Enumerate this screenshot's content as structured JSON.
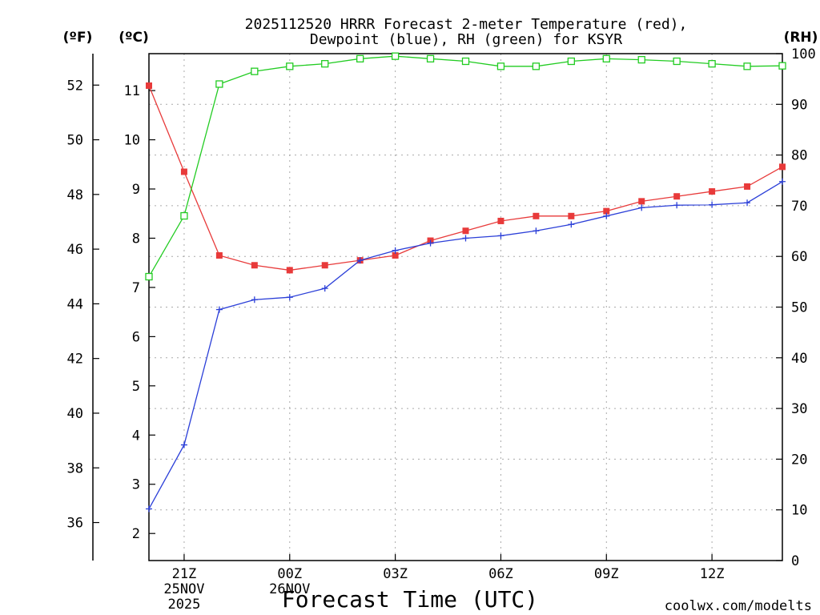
{
  "title_line1": "2025112520 HRRR Forecast 2-meter Temperature (red),",
  "title_line2": "Dewpoint (blue), RH (green) for KSYR",
  "units": {
    "fahrenheit": "(ºF)",
    "celsius": "(ºC)",
    "rh": "(RH)"
  },
  "xlabel": "Forecast Time (UTC)",
  "watermark": "coolwx.com/modelts",
  "colors": {
    "temperature": "#e83a3a",
    "dewpoint": "#2b3fd8",
    "rh": "#22cc22",
    "grid": "#aaaaaa",
    "watermark": "#e0484f"
  },
  "chart_data": {
    "type": "line",
    "x_unit": "hours (UTC) from 20Z 25NOV2025",
    "x": [
      0,
      1,
      2,
      3,
      4,
      5,
      6,
      7,
      8,
      9,
      10,
      11,
      12,
      13,
      14,
      15,
      16,
      17,
      18
    ],
    "x_ticks": [
      {
        "x": 1,
        "lines": [
          "21Z",
          "25NOV",
          "2025"
        ]
      },
      {
        "x": 4,
        "lines": [
          "00Z",
          "26NOV"
        ]
      },
      {
        "x": 7,
        "lines": [
          "03Z"
        ]
      },
      {
        "x": 10,
        "lines": [
          "06Z"
        ]
      },
      {
        "x": 13,
        "lines": [
          "09Z"
        ]
      },
      {
        "x": 16,
        "lines": [
          "12Z"
        ]
      }
    ],
    "xlim": [
      0,
      18
    ],
    "y_left_celsius": {
      "lim": [
        1.45,
        11.75
      ],
      "ticks": [
        2,
        3,
        4,
        5,
        6,
        7,
        8,
        9,
        10,
        11
      ]
    },
    "y_left_fahrenheit": {
      "ticks": [
        36,
        38,
        40,
        42,
        44,
        46,
        48,
        50,
        52
      ]
    },
    "y_right_rh": {
      "lim": [
        0,
        100
      ],
      "ticks": [
        0,
        10,
        20,
        30,
        40,
        50,
        60,
        70,
        80,
        90,
        100
      ]
    },
    "grid": true,
    "series": [
      {
        "name": "Temperature",
        "axis": "celsius",
        "marker": "filled-square",
        "values": [
          11.1,
          9.35,
          7.65,
          7.45,
          7.35,
          7.45,
          7.55,
          7.65,
          7.95,
          8.15,
          8.35,
          8.45,
          8.45,
          8.55,
          8.75,
          8.85,
          8.95,
          9.05,
          9.45
        ]
      },
      {
        "name": "Dewpoint",
        "axis": "celsius",
        "marker": "plus",
        "values": [
          2.5,
          3.8,
          6.55,
          6.75,
          6.8,
          6.98,
          7.55,
          7.75,
          7.9,
          8.0,
          8.05,
          8.15,
          8.28,
          8.45,
          8.62,
          8.67,
          8.68,
          8.72,
          9.15
        ]
      },
      {
        "name": "RH",
        "axis": "rh",
        "marker": "open-square",
        "values": [
          56,
          68,
          94,
          96.5,
          97.5,
          98,
          99,
          99.5,
          99,
          98.5,
          97.5,
          97.5,
          98.5,
          99,
          98.8,
          98.5,
          98,
          97.5,
          97.6
        ]
      }
    ]
  }
}
